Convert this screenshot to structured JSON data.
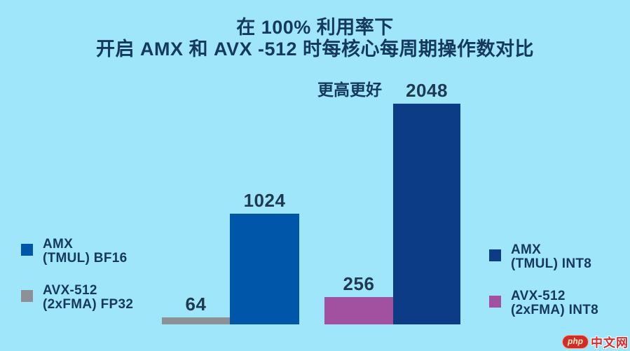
{
  "title": {
    "line1": "在 100% 利用率下",
    "line2": "开启 AMX 和 AVX -512 时每核心每周期操作数对比"
  },
  "subtitle": "更高更好",
  "chart_data": {
    "type": "bar",
    "title": "在 100% 利用率下 开启 AMX 和 AVX -512 时每核心每周期操作数对比",
    "annotation": "更高更好",
    "categories": [
      "AVX-512 (2xFMA) FP32",
      "AMX (TMUL) BF16",
      "AVX-512 (2xFMA) INT8",
      "AMX (TMUL) INT8"
    ],
    "values": [
      64,
      1024,
      256,
      2048
    ],
    "bars": [
      {
        "name": "AVX-512 (2xFMA) FP32",
        "value": 64,
        "color": "#8b9197"
      },
      {
        "name": "AMX (TMUL) BF16",
        "value": 1024,
        "color": "#0056a9"
      },
      {
        "name": "AVX-512 (2xFMA) INT8",
        "value": 256,
        "color": "#a1519f"
      },
      {
        "name": "AMX (TMUL) INT8",
        "value": 2048,
        "color": "#0d3c86"
      }
    ],
    "ylim": [
      0,
      2048
    ],
    "grid": false,
    "data_labels": true,
    "legend_position": "left-and-right-sides"
  },
  "legend_left": [
    {
      "line1": "AMX",
      "line2": "(TMUL) BF16",
      "color": "#0056a9"
    },
    {
      "line1": "AVX-512",
      "line2": "(2xFMA) FP32",
      "color": "#8b9197"
    }
  ],
  "legend_right": [
    {
      "line1": "AMX",
      "line2": "(TMUL) INT8",
      "color": "#0d3c86"
    },
    {
      "line1": "AVX-512",
      "line2": "(2xFMA) INT8",
      "color": "#a1519f"
    }
  ],
  "watermark": {
    "badge": "php",
    "text": "中文网"
  },
  "colors": {
    "background": "#a0e6fb",
    "title_text": "#14395c",
    "value_label": "#1e3a50",
    "watermark_red": "#e0292b"
  }
}
